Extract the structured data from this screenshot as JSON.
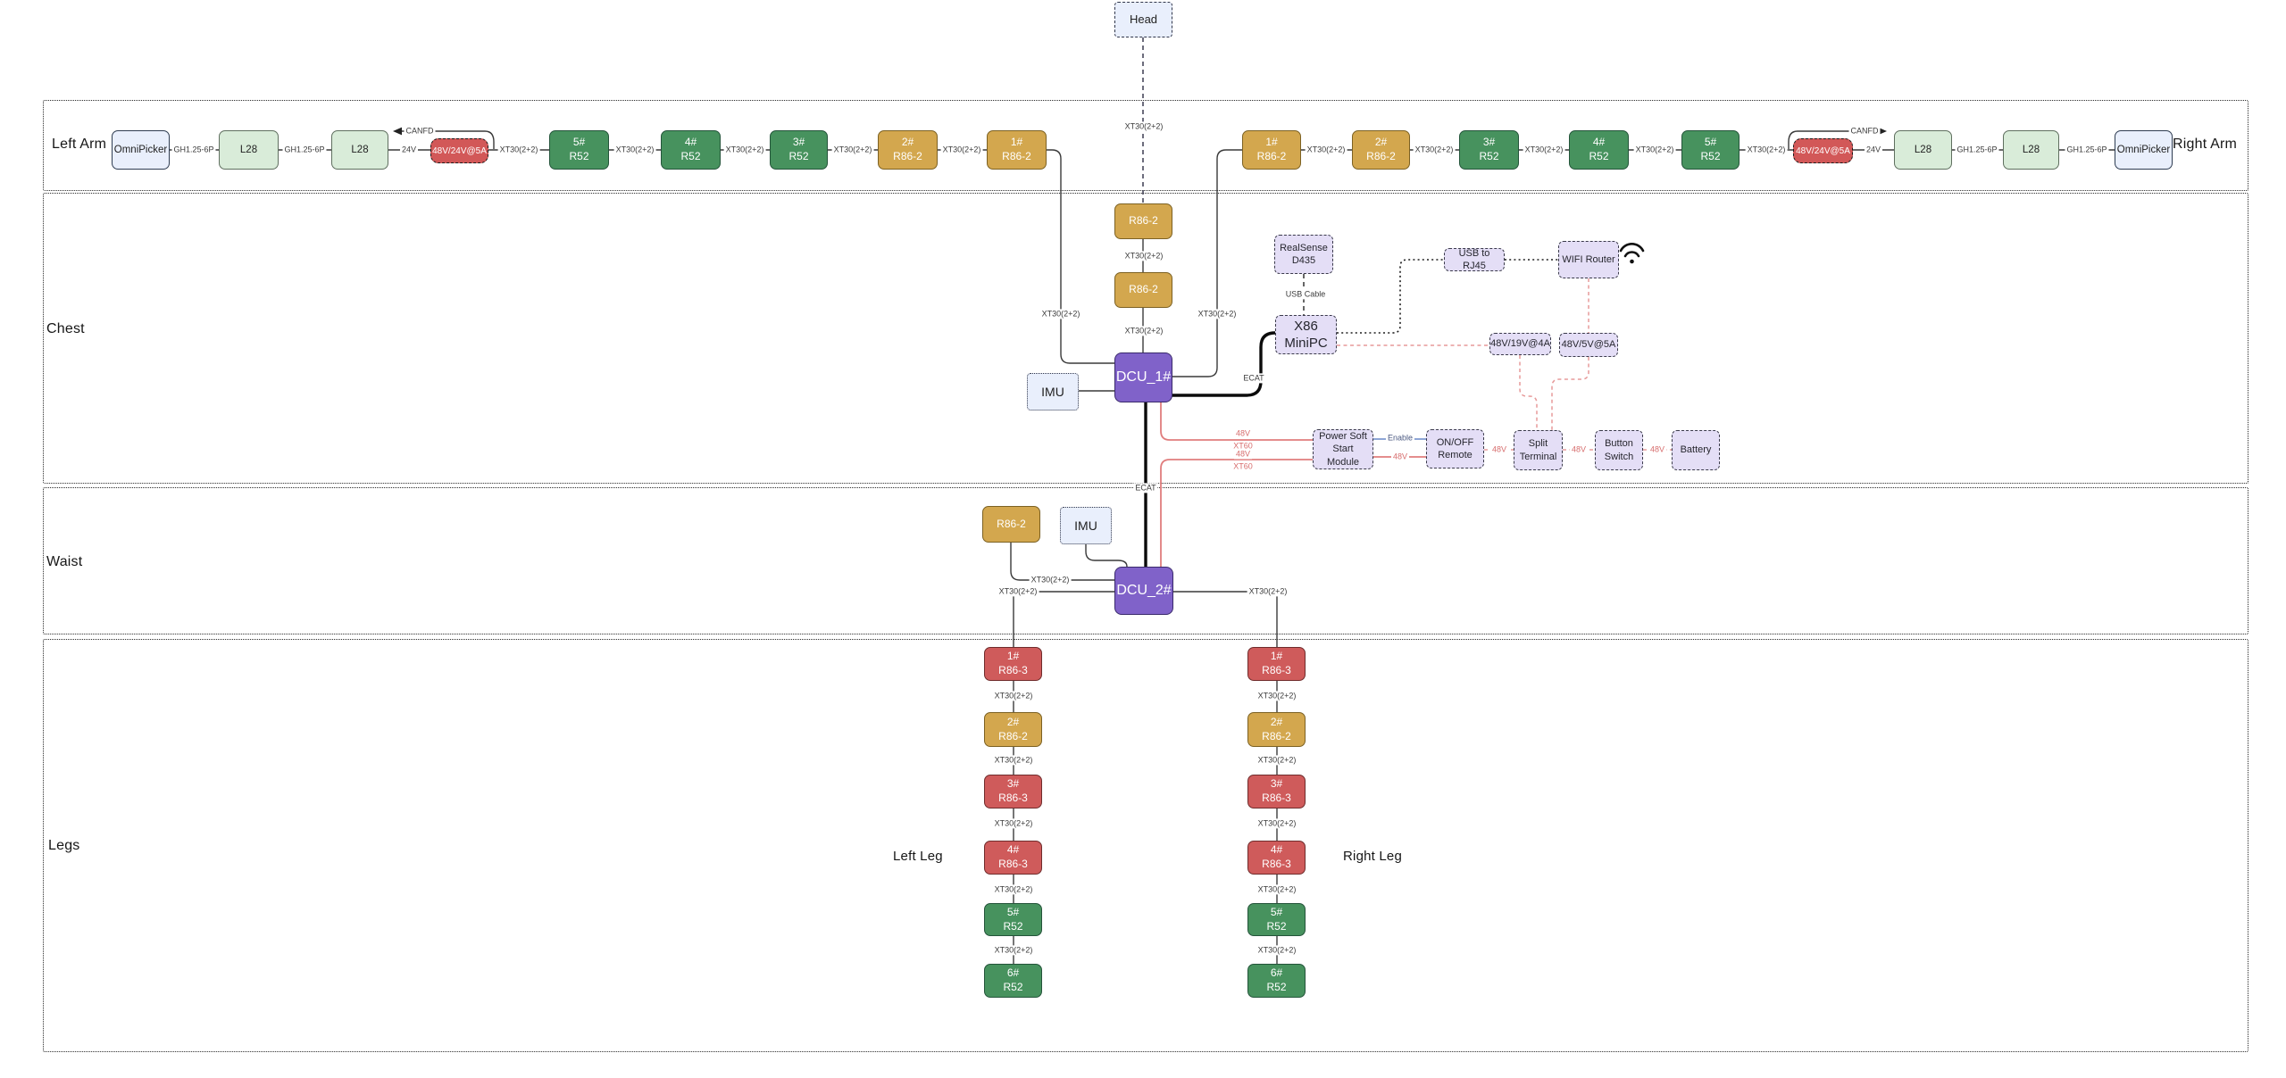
{
  "sections": {
    "arms_left": "Left Arm",
    "arms_right": "Right Arm",
    "chest": "Chest",
    "waist": "Waist",
    "legs": "Legs",
    "left_leg": "Left Leg",
    "right_leg": "Right Leg"
  },
  "colors": {
    "motor_green": "#47925e",
    "motor_gold": "#d3a74e",
    "motor_red": "#cf5b5b",
    "dcu_purple": "#8062c9",
    "peripheral_lavender": "#e4def6",
    "sensor_lightblue": "#e9effc",
    "gripper_l28_green": "#d9ecd9",
    "converter_red": "#d25858",
    "power_line_red": "#e07d7d",
    "enable_line_blue": "#7e9ad0"
  },
  "nodes": [
    {
      "id": "la_omni",
      "name": "left-arm-omnipicker",
      "kind": "gripper",
      "lines": [
        "OmniPicker"
      ]
    },
    {
      "id": "la_l28a",
      "name": "left-arm-l28-1",
      "kind": "l28",
      "lines": [
        "L28"
      ]
    },
    {
      "id": "la_l28b",
      "name": "left-arm-l28-2",
      "kind": "l28",
      "lines": [
        "L28"
      ]
    },
    {
      "id": "la_conv",
      "name": "left-arm-power-converter",
      "kind": "conv",
      "lines": [
        "48V/24V@5A"
      ]
    },
    {
      "id": "la_m5",
      "name": "left-arm-motor-5",
      "kind": "green",
      "lines": [
        "5#",
        "R52"
      ]
    },
    {
      "id": "la_m4",
      "name": "left-arm-motor-4",
      "kind": "green",
      "lines": [
        "4#",
        "R52"
      ]
    },
    {
      "id": "la_m3",
      "name": "left-arm-motor-3",
      "kind": "green",
      "lines": [
        "3#",
        "R52"
      ]
    },
    {
      "id": "la_m2",
      "name": "left-arm-motor-2",
      "kind": "gold",
      "lines": [
        "2#",
        "R86-2"
      ]
    },
    {
      "id": "la_m1",
      "name": "left-arm-motor-1",
      "kind": "gold",
      "lines": [
        "1#",
        "R86-2"
      ]
    },
    {
      "id": "ra_m1",
      "name": "right-arm-motor-1",
      "kind": "gold",
      "lines": [
        "1#",
        "R86-2"
      ]
    },
    {
      "id": "ra_m2",
      "name": "right-arm-motor-2",
      "kind": "gold",
      "lines": [
        "2#",
        "R86-2"
      ]
    },
    {
      "id": "ra_m3",
      "name": "right-arm-motor-3",
      "kind": "green",
      "lines": [
        "3#",
        "R52"
      ]
    },
    {
      "id": "ra_m4",
      "name": "right-arm-motor-4",
      "kind": "green",
      "lines": [
        "4#",
        "R52"
      ]
    },
    {
      "id": "ra_m5",
      "name": "right-arm-motor-5",
      "kind": "green",
      "lines": [
        "5#",
        "R52"
      ]
    },
    {
      "id": "ra_conv",
      "name": "right-arm-power-converter",
      "kind": "conv",
      "lines": [
        "48V/24V@5A"
      ]
    },
    {
      "id": "ra_l28a",
      "name": "right-arm-l28-1",
      "kind": "l28",
      "lines": [
        "L28"
      ]
    },
    {
      "id": "ra_l28b",
      "name": "right-arm-l28-2",
      "kind": "l28",
      "lines": [
        "L28"
      ]
    },
    {
      "id": "ra_omni",
      "name": "right-arm-omnipicker",
      "kind": "gripper",
      "lines": [
        "OmniPicker"
      ]
    },
    {
      "id": "head",
      "name": "head-box",
      "kind": "head",
      "lines": [
        "Head"
      ]
    },
    {
      "id": "c_r86a",
      "name": "chest-motor-r86-upper",
      "kind": "gold",
      "lines": [
        "R86-2"
      ]
    },
    {
      "id": "c_r86b",
      "name": "chest-motor-r86-lower",
      "kind": "gold",
      "lines": [
        "R86-2"
      ]
    },
    {
      "id": "dcu1",
      "name": "dcu-1",
      "kind": "dcu",
      "lines": [
        "DCU_1#"
      ]
    },
    {
      "id": "c_imu",
      "name": "chest-imu",
      "kind": "imu",
      "lines": [
        "IMU"
      ]
    },
    {
      "id": "realsense",
      "name": "realsense-d435",
      "kind": "lav",
      "lines": [
        "RealSense",
        "D435"
      ]
    },
    {
      "id": "x86",
      "name": "x86-minipc",
      "kind": "lav2",
      "lines": [
        "X86",
        "MiniPC"
      ]
    },
    {
      "id": "usbrj45",
      "name": "usb-to-rj45-adapter",
      "kind": "lav",
      "lines": [
        "USB to RJ45"
      ]
    },
    {
      "id": "wifi",
      "name": "wifi-router",
      "kind": "lav",
      "lines": [
        "WIFI Router"
      ]
    },
    {
      "id": "cv19",
      "name": "converter-48v-19v-4a",
      "kind": "lav",
      "lines": [
        "48V/19V@4A"
      ]
    },
    {
      "id": "cv5",
      "name": "converter-48v-5v-5a",
      "kind": "lav",
      "lines": [
        "48V/5V@5A"
      ]
    },
    {
      "id": "psm",
      "name": "power-soft-start-module",
      "kind": "lav",
      "lines": [
        "Power Soft",
        "Start Module"
      ]
    },
    {
      "id": "onoff",
      "name": "on-off-remote",
      "kind": "lav",
      "lines": [
        "ON/OFF",
        "Remote"
      ]
    },
    {
      "id": "split",
      "name": "split-terminal",
      "kind": "lav",
      "lines": [
        "Split",
        "Terminal"
      ]
    },
    {
      "id": "btnsw",
      "name": "button-switch",
      "kind": "lav",
      "lines": [
        "Button",
        "Switch"
      ]
    },
    {
      "id": "battery",
      "name": "battery",
      "kind": "lav",
      "lines": [
        "Battery"
      ]
    },
    {
      "id": "w_r86",
      "name": "waist-motor-r86",
      "kind": "gold",
      "lines": [
        "R86-2"
      ]
    },
    {
      "id": "w_imu",
      "name": "waist-imu",
      "kind": "imu",
      "lines": [
        "IMU"
      ]
    },
    {
      "id": "dcu2",
      "name": "dcu-2",
      "kind": "dcu",
      "lines": [
        "DCU_2#"
      ]
    },
    {
      "id": "ll1",
      "name": "left-leg-motor-1",
      "kind": "red",
      "lines": [
        "1#",
        "R86-3"
      ]
    },
    {
      "id": "ll2",
      "name": "left-leg-motor-2",
      "kind": "gold",
      "lines": [
        "2#",
        "R86-2"
      ]
    },
    {
      "id": "ll3",
      "name": "left-leg-motor-3",
      "kind": "red",
      "lines": [
        "3#",
        "R86-3"
      ]
    },
    {
      "id": "ll4",
      "name": "left-leg-motor-4",
      "kind": "red",
      "lines": [
        "4#",
        "R86-3"
      ]
    },
    {
      "id": "ll5",
      "name": "left-leg-motor-5",
      "kind": "green",
      "lines": [
        "5#",
        "R52"
      ]
    },
    {
      "id": "ll6",
      "name": "left-leg-motor-6",
      "kind": "green",
      "lines": [
        "6#",
        "R52"
      ]
    },
    {
      "id": "rl1",
      "name": "right-leg-motor-1",
      "kind": "red",
      "lines": [
        "1#",
        "R86-3"
      ]
    },
    {
      "id": "rl2",
      "name": "right-leg-motor-2",
      "kind": "gold",
      "lines": [
        "2#",
        "R86-2"
      ]
    },
    {
      "id": "rl3",
      "name": "right-leg-motor-3",
      "kind": "red",
      "lines": [
        "3#",
        "R86-3"
      ]
    },
    {
      "id": "rl4",
      "name": "right-leg-motor-4",
      "kind": "red",
      "lines": [
        "4#",
        "R86-3"
      ]
    },
    {
      "id": "rl5",
      "name": "right-leg-motor-5",
      "kind": "green",
      "lines": [
        "5#",
        "R52"
      ]
    },
    {
      "id": "rl6",
      "name": "right-leg-motor-6",
      "kind": "green",
      "lines": [
        "6#",
        "R52"
      ]
    }
  ],
  "edges": [
    {
      "id": "e1",
      "kind": "solid",
      "label": "GH1.25-6P"
    },
    {
      "id": "e2",
      "kind": "solid",
      "label": "GH1.25-6P"
    },
    {
      "id": "e3",
      "kind": "solid",
      "label": "24V"
    },
    {
      "id": "e4",
      "kind": "solid",
      "label": "XT30(2+2)"
    },
    {
      "id": "e5",
      "kind": "solid",
      "label": "XT30(2+2)"
    },
    {
      "id": "e6",
      "kind": "solid",
      "label": "XT30(2+2)"
    },
    {
      "id": "e7",
      "kind": "solid",
      "label": "XT30(2+2)"
    },
    {
      "id": "e8",
      "kind": "solid",
      "label": "XT30(2+2)"
    },
    {
      "id": "e9",
      "kind": "solid",
      "label": "XT30(2+2)"
    },
    {
      "id": "e10",
      "kind": "solid",
      "label": "CANFD"
    },
    {
      "id": "e11",
      "kind": "solid",
      "label": "CANFD"
    },
    {
      "id": "e12",
      "kind": "solid",
      "label": "XT30(2+2)"
    },
    {
      "id": "e13",
      "kind": "solid",
      "label": "XT30(2+2)"
    },
    {
      "id": "e14",
      "kind": "solid",
      "label": "XT30(2+2)"
    },
    {
      "id": "e15",
      "kind": "solid",
      "label": "XT30(2+2)"
    },
    {
      "id": "e16",
      "kind": "solid",
      "label": "XT30(2+2)"
    },
    {
      "id": "e17",
      "kind": "solid",
      "label": "24V"
    },
    {
      "id": "e18",
      "kind": "solid",
      "label": "GH1.25-6P"
    },
    {
      "id": "e19",
      "kind": "solid",
      "label": "GH1.25-6P"
    },
    {
      "id": "e20",
      "kind": "solid",
      "label": "XT30(2+2)"
    },
    {
      "id": "e21",
      "kind": "headdash",
      "label": "XT30(2+2)"
    },
    {
      "id": "e22",
      "kind": "solid",
      "label": "XT30(2+2)"
    },
    {
      "id": "e23",
      "kind": "solid",
      "label": "XT30(2+2)"
    },
    {
      "id": "e24",
      "kind": "solid",
      "label": null
    },
    {
      "id": "e25",
      "kind": "thick",
      "label": "ECAT"
    },
    {
      "id": "e26",
      "kind": "dash",
      "label": "USB Cable"
    },
    {
      "id": "e27",
      "kind": "dot",
      "label": null
    },
    {
      "id": "e28",
      "kind": "dot",
      "label": null
    },
    {
      "id": "e29",
      "kind": "reddash",
      "label": null
    },
    {
      "id": "e30",
      "kind": "reddash",
      "label": null
    },
    {
      "id": "e31",
      "kind": "reddash",
      "label": null
    },
    {
      "id": "e32",
      "kind": "reddash",
      "label": null
    },
    {
      "id": "e33",
      "kind": "red",
      "label": null
    },
    {
      "id": "e34",
      "kind": "red",
      "label": null
    },
    {
      "id": "e35",
      "kind": "thick",
      "label": "ECAT"
    },
    {
      "id": "e36",
      "kind": "blue",
      "label": "Enable",
      "lc": "blue"
    },
    {
      "id": "e37",
      "kind": "red",
      "label": "48V",
      "lc": "red"
    },
    {
      "id": "e38",
      "kind": "reddash",
      "label": "48V",
      "lc": "red"
    },
    {
      "id": "e39",
      "kind": "reddash",
      "label": "48V",
      "lc": "red"
    },
    {
      "id": "e40",
      "kind": "reddash",
      "label": "48V",
      "lc": "red"
    },
    {
      "id": "e41",
      "kind": "solid",
      "label": "XT30(2+2)"
    },
    {
      "id": "e42",
      "kind": "solid",
      "label": null
    },
    {
      "id": "e43",
      "kind": "solid",
      "label": "XT30(2+2)"
    },
    {
      "id": "e44",
      "kind": "solid",
      "label": "XT30(2+2)"
    },
    {
      "id": "e45",
      "kind": "solid",
      "label": "XT30(2+2)"
    },
    {
      "id": "e46",
      "kind": "solid",
      "label": "XT30(2+2)"
    },
    {
      "id": "e47",
      "kind": "solid",
      "label": "XT30(2+2)"
    },
    {
      "id": "e48",
      "kind": "solid",
      "label": "XT30(2+2)"
    },
    {
      "id": "e49",
      "kind": "solid",
      "label": "XT30(2+2)"
    },
    {
      "id": "e50",
      "kind": "solid",
      "label": "XT30(2+2)"
    },
    {
      "id": "e51",
      "kind": "solid",
      "label": "XT30(2+2)"
    },
    {
      "id": "e52",
      "kind": "solid",
      "label": "XT30(2+2)"
    },
    {
      "id": "e53",
      "kind": "solid",
      "label": "XT30(2+2)"
    },
    {
      "id": "e54",
      "kind": "solid",
      "label": "XT30(2+2)"
    }
  ],
  "free_labels": [
    {
      "id": "fl1",
      "text": "48V",
      "lc": "red"
    },
    {
      "id": "fl2",
      "text": "XT60",
      "lc": "red"
    },
    {
      "id": "fl3",
      "text": "48V",
      "lc": "red"
    },
    {
      "id": "fl4",
      "text": "XT60",
      "lc": "red"
    }
  ]
}
